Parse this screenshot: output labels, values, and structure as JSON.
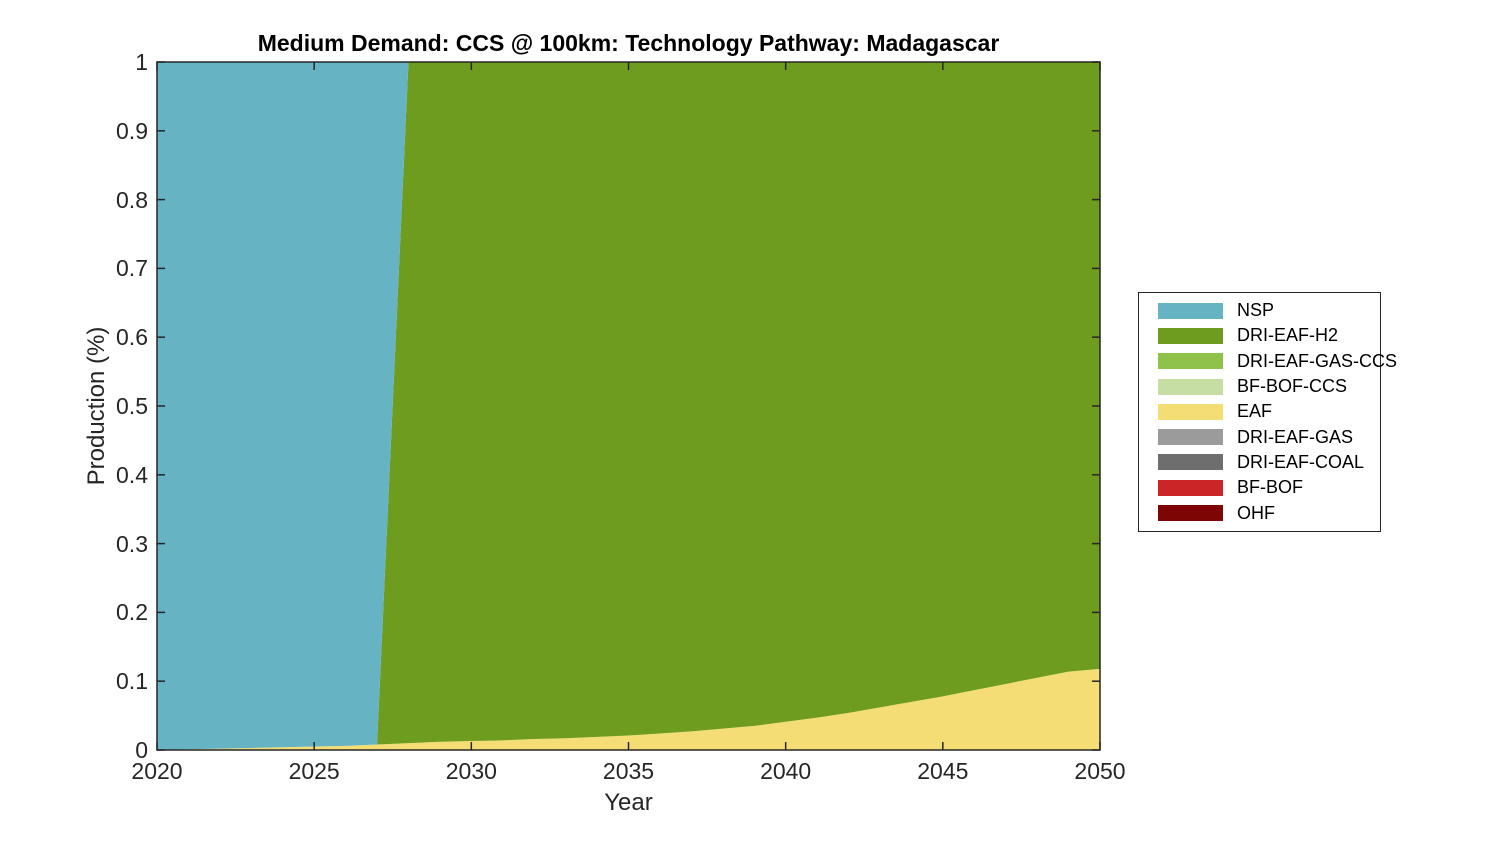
{
  "chart_data": {
    "type": "area",
    "stacked": true,
    "stack_note": "stacking bottom-to-top is reverse of series order (OHF bottom, NSP top); legend lists top series first",
    "title": "Medium Demand: CCS @ 100km: Technology Pathway: Madagascar",
    "xlabel": "Year",
    "ylabel": "Production (%)",
    "xlim": [
      2020,
      2050
    ],
    "ylim": [
      0,
      1
    ],
    "xticks": [
      2020,
      2025,
      2030,
      2035,
      2040,
      2045,
      2050
    ],
    "xtick_labels": [
      "2020",
      "2025",
      "2030",
      "2035",
      "2040",
      "2045",
      "2050"
    ],
    "yticks": [
      0,
      0.1,
      0.2,
      0.3,
      0.4,
      0.5,
      0.6,
      0.7,
      0.8,
      0.9,
      1
    ],
    "ytick_labels": [
      "0",
      "0.1",
      "0.2",
      "0.3",
      "0.4",
      "0.5",
      "0.6",
      "0.7",
      "0.8",
      "0.9",
      "1"
    ],
    "grid": false,
    "legend_position": "right-outside",
    "axis_color": "#262626",
    "x": [
      2020,
      2021,
      2022,
      2023,
      2024,
      2025,
      2026,
      2027,
      2028,
      2029,
      2030,
      2031,
      2032,
      2033,
      2034,
      2035,
      2036,
      2037,
      2038,
      2039,
      2040,
      2041,
      2042,
      2043,
      2044,
      2045,
      2046,
      2047,
      2048,
      2049,
      2050
    ],
    "series": [
      {
        "name": "NSP",
        "color": "#66b3c4",
        "values": [
          1.0,
          0.999,
          0.998,
          0.997,
          0.996,
          0.995,
          0.994,
          0.992,
          0,
          0,
          0,
          0,
          0,
          0,
          0,
          0,
          0,
          0,
          0,
          0,
          0,
          0,
          0,
          0,
          0,
          0,
          0,
          0,
          0,
          0,
          0
        ]
      },
      {
        "name": "DRI-EAF-H2",
        "color": "#6d9c1e",
        "values": [
          0,
          0,
          0,
          0,
          0,
          0,
          0,
          0,
          0.99,
          0.988,
          0.987,
          0.986,
          0.984,
          0.983,
          0.981,
          0.979,
          0.976,
          0.973,
          0.969,
          0.965,
          0.959,
          0.953,
          0.946,
          0.938,
          0.93,
          0.922,
          0.913,
          0.904,
          0.895,
          0.886,
          0.882
        ]
      },
      {
        "name": "DRI-EAF-GAS-CCS",
        "color": "#8fc24a",
        "values": [
          0,
          0,
          0,
          0,
          0,
          0,
          0,
          0,
          0,
          0,
          0,
          0,
          0,
          0,
          0,
          0,
          0,
          0,
          0,
          0,
          0,
          0,
          0,
          0,
          0,
          0,
          0,
          0,
          0,
          0,
          0
        ]
      },
      {
        "name": "BF-BOF-CCS",
        "color": "#c6dda4",
        "values": [
          0,
          0,
          0,
          0,
          0,
          0,
          0,
          0,
          0,
          0,
          0,
          0,
          0,
          0,
          0,
          0,
          0,
          0,
          0,
          0,
          0,
          0,
          0,
          0,
          0,
          0,
          0,
          0,
          0,
          0,
          0
        ]
      },
      {
        "name": "EAF",
        "color": "#f5dd76",
        "values": [
          0.0,
          0.001,
          0.002,
          0.003,
          0.004,
          0.005,
          0.006,
          0.008,
          0.01,
          0.012,
          0.013,
          0.014,
          0.016,
          0.017,
          0.019,
          0.021,
          0.024,
          0.027,
          0.031,
          0.035,
          0.041,
          0.047,
          0.054,
          0.062,
          0.07,
          0.078,
          0.087,
          0.096,
          0.105,
          0.114,
          0.118
        ]
      },
      {
        "name": "DRI-EAF-GAS",
        "color": "#9b9b9b",
        "values": [
          0,
          0,
          0,
          0,
          0,
          0,
          0,
          0,
          0,
          0,
          0,
          0,
          0,
          0,
          0,
          0,
          0,
          0,
          0,
          0,
          0,
          0,
          0,
          0,
          0,
          0,
          0,
          0,
          0,
          0,
          0
        ]
      },
      {
        "name": "DRI-EAF-COAL",
        "color": "#6e6e6e",
        "values": [
          0,
          0,
          0,
          0,
          0,
          0,
          0,
          0,
          0,
          0,
          0,
          0,
          0,
          0,
          0,
          0,
          0,
          0,
          0,
          0,
          0,
          0,
          0,
          0,
          0,
          0,
          0,
          0,
          0,
          0,
          0
        ]
      },
      {
        "name": "BF-BOF",
        "color": "#cb2527",
        "values": [
          0,
          0,
          0,
          0,
          0,
          0,
          0,
          0,
          0,
          0,
          0,
          0,
          0,
          0,
          0,
          0,
          0,
          0,
          0,
          0,
          0,
          0,
          0,
          0,
          0,
          0,
          0,
          0,
          0,
          0,
          0
        ]
      },
      {
        "name": "OHF",
        "color": "#7d0605",
        "values": [
          0,
          0,
          0,
          0,
          0,
          0,
          0,
          0,
          0,
          0,
          0,
          0,
          0,
          0,
          0,
          0,
          0,
          0,
          0,
          0,
          0,
          0,
          0,
          0,
          0,
          0,
          0,
          0,
          0,
          0,
          0
        ]
      }
    ]
  }
}
